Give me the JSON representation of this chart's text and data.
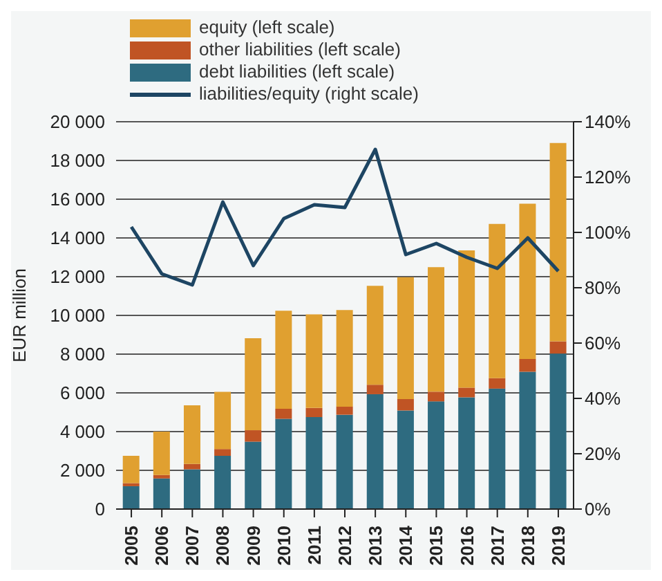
{
  "chart_data": {
    "type": "bar",
    "stacked": true,
    "ylabel": "EUR million",
    "categories": [
      "2005",
      "2006",
      "2007",
      "2008",
      "2009",
      "2010",
      "2011",
      "2012",
      "2013",
      "2014",
      "2015",
      "2016",
      "2017",
      "2018",
      "2019"
    ],
    "series": [
      {
        "name": "debt liabilities (left scale)",
        "color": "#2e6b80",
        "values": [
          1180,
          1580,
          2050,
          2750,
          3480,
          4660,
          4750,
          4870,
          5930,
          5090,
          5560,
          5770,
          6220,
          7090,
          8030
        ]
      },
      {
        "name": "other liabilities (left scale)",
        "color": "#c05424",
        "values": [
          160,
          180,
          280,
          350,
          590,
          520,
          470,
          420,
          490,
          590,
          500,
          500,
          540,
          660,
          630
        ]
      },
      {
        "name": "equity (left scale)",
        "color": "#e0a030",
        "values": [
          1410,
          2240,
          3030,
          2950,
          4750,
          5060,
          4830,
          4990,
          5110,
          6290,
          6430,
          7090,
          7960,
          8020,
          10240
        ]
      },
      {
        "name": "liabilities/equity (right scale)",
        "type": "line",
        "axis": "y2",
        "color": "#1d4563",
        "values": [
          102,
          85,
          81,
          111,
          88,
          105,
          110,
          109,
          130,
          92,
          96,
          91,
          87,
          98,
          86
        ]
      }
    ],
    "ylim": [
      0,
      20000
    ],
    "yticks": [
      {
        "value": 0,
        "label": "0"
      },
      {
        "value": 2000,
        "label": "2 000"
      },
      {
        "value": 4000,
        "label": "4 000"
      },
      {
        "value": 6000,
        "label": "6 000"
      },
      {
        "value": 8000,
        "label": "8 000"
      },
      {
        "value": 10000,
        "label": "10 000"
      },
      {
        "value": 12000,
        "label": "12 000"
      },
      {
        "value": 14000,
        "label": "14 000"
      },
      {
        "value": 16000,
        "label": "16 000"
      },
      {
        "value": 18000,
        "label": "18 000"
      },
      {
        "value": 20000,
        "label": "20 000"
      }
    ],
    "y2lim": [
      0,
      140
    ],
    "y2ticks": [
      {
        "value": 0,
        "label": "0%"
      },
      {
        "value": 20,
        "label": "20%"
      },
      {
        "value": 40,
        "label": "40%"
      },
      {
        "value": 60,
        "label": "60%"
      },
      {
        "value": 80,
        "label": "80%"
      },
      {
        "value": 100,
        "label": "100%"
      },
      {
        "value": 120,
        "label": "120%"
      },
      {
        "value": 140,
        "label": "140%"
      }
    ],
    "grid": "y",
    "legend": "top left",
    "marker": "none",
    "line_style": "solid"
  }
}
